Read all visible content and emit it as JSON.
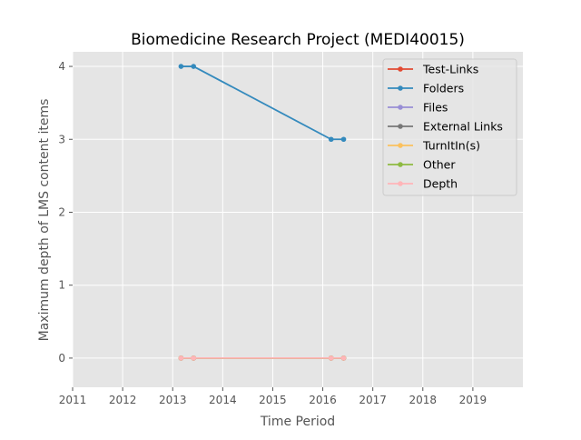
{
  "chart_data": {
    "type": "line",
    "title": "Biomedicine Research Project (MEDI40015)",
    "xlabel": "Time Period",
    "ylabel": "Maximum depth of LMS content items",
    "xlim": [
      2011,
      2020
    ],
    "ylim": [
      -0.4,
      4.2
    ],
    "xticks": [
      "2011",
      "2012",
      "2013",
      "2014",
      "2015",
      "2016",
      "2017",
      "2018",
      "2019"
    ],
    "yticks": [
      "0",
      "1",
      "2",
      "3",
      "4"
    ],
    "grid": true,
    "legend_position": "top-right",
    "x_dates": [
      "2013-03",
      "2013-06",
      "2016-03",
      "2016-06"
    ],
    "series": [
      {
        "name": "Test-Links",
        "color": "#e24a33",
        "values": [
          0,
          0,
          0,
          0
        ]
      },
      {
        "name": "Folders",
        "color": "#348abd",
        "values": [
          4,
          4,
          3,
          3
        ]
      },
      {
        "name": "Files",
        "color": "#988ed5",
        "values": [
          0,
          0,
          0,
          0
        ]
      },
      {
        "name": "External Links",
        "color": "#777777",
        "values": [
          0,
          0,
          0,
          0
        ]
      },
      {
        "name": "TurnItIn(s)",
        "color": "#fbc15e",
        "values": [
          0,
          0,
          0,
          0
        ]
      },
      {
        "name": "Other",
        "color": "#8eba42",
        "values": [
          0,
          0,
          0,
          0
        ]
      },
      {
        "name": "Depth",
        "color": "#ffb5b8",
        "values": [
          0,
          0,
          0,
          0
        ]
      }
    ]
  }
}
